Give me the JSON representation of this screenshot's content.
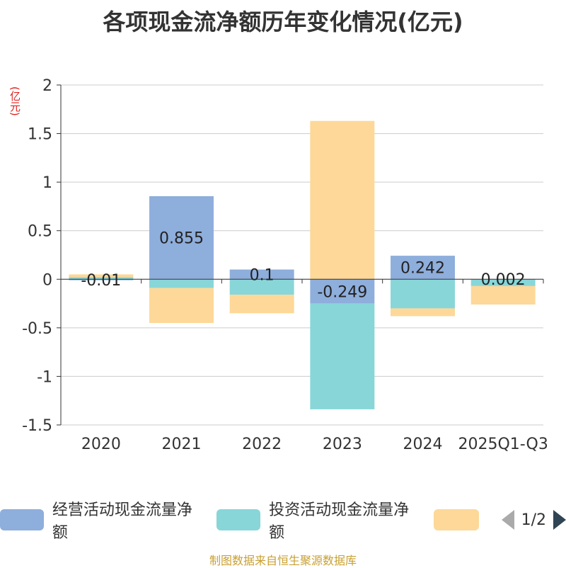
{
  "chart_data": {
    "type": "bar",
    "stacked": true,
    "title": "各项现金流净额历年变化情况(亿元)",
    "ylabel": "(亿元)",
    "xlabel": "",
    "ylim": [
      -1.5,
      2
    ],
    "yticks": [
      2,
      1.5,
      1,
      0.5,
      0,
      -0.5,
      -1,
      -1.5
    ],
    "ytick_labels": [
      "2",
      "1.5",
      "1",
      "0.5",
      "0",
      "-0.5",
      "-1",
      "-1.5"
    ],
    "categories": [
      "2020",
      "2021",
      "2022",
      "2023",
      "2024",
      "2025Q1-Q3"
    ],
    "series": [
      {
        "name": "经营活动现金流量净额",
        "color": "#8eaedc",
        "values": [
          -0.01,
          0.855,
          0.1,
          -0.249,
          0.242,
          0.002
        ],
        "labels": [
          "-0.01",
          "0.855",
          "0.1",
          "-0.249",
          "0.242",
          "0.002"
        ]
      },
      {
        "name": "投资活动现金流量净额",
        "color": "#88d6d8",
        "values": [
          0.02,
          -0.09,
          -0.16,
          -1.09,
          -0.3,
          -0.07
        ],
        "labels": [
          "",
          "",
          "",
          "",
          "",
          ""
        ]
      },
      {
        "name": "",
        "color": "#fdd898",
        "values": [
          0.03,
          -0.36,
          -0.19,
          1.63,
          -0.08,
          -0.19
        ],
        "labels": [
          "",
          "",
          "",
          "",
          "",
          ""
        ]
      }
    ],
    "grid": true
  },
  "legend": {
    "items": [
      {
        "name": "经营活动现金流量净额",
        "color": "#8eaedc"
      },
      {
        "name": "投资活动现金流量净额",
        "color": "#88d6d8"
      },
      {
        "name": "",
        "color": "#fdd898"
      }
    ],
    "page": "1/2"
  },
  "source": "制图数据来自恒生聚源数据库"
}
